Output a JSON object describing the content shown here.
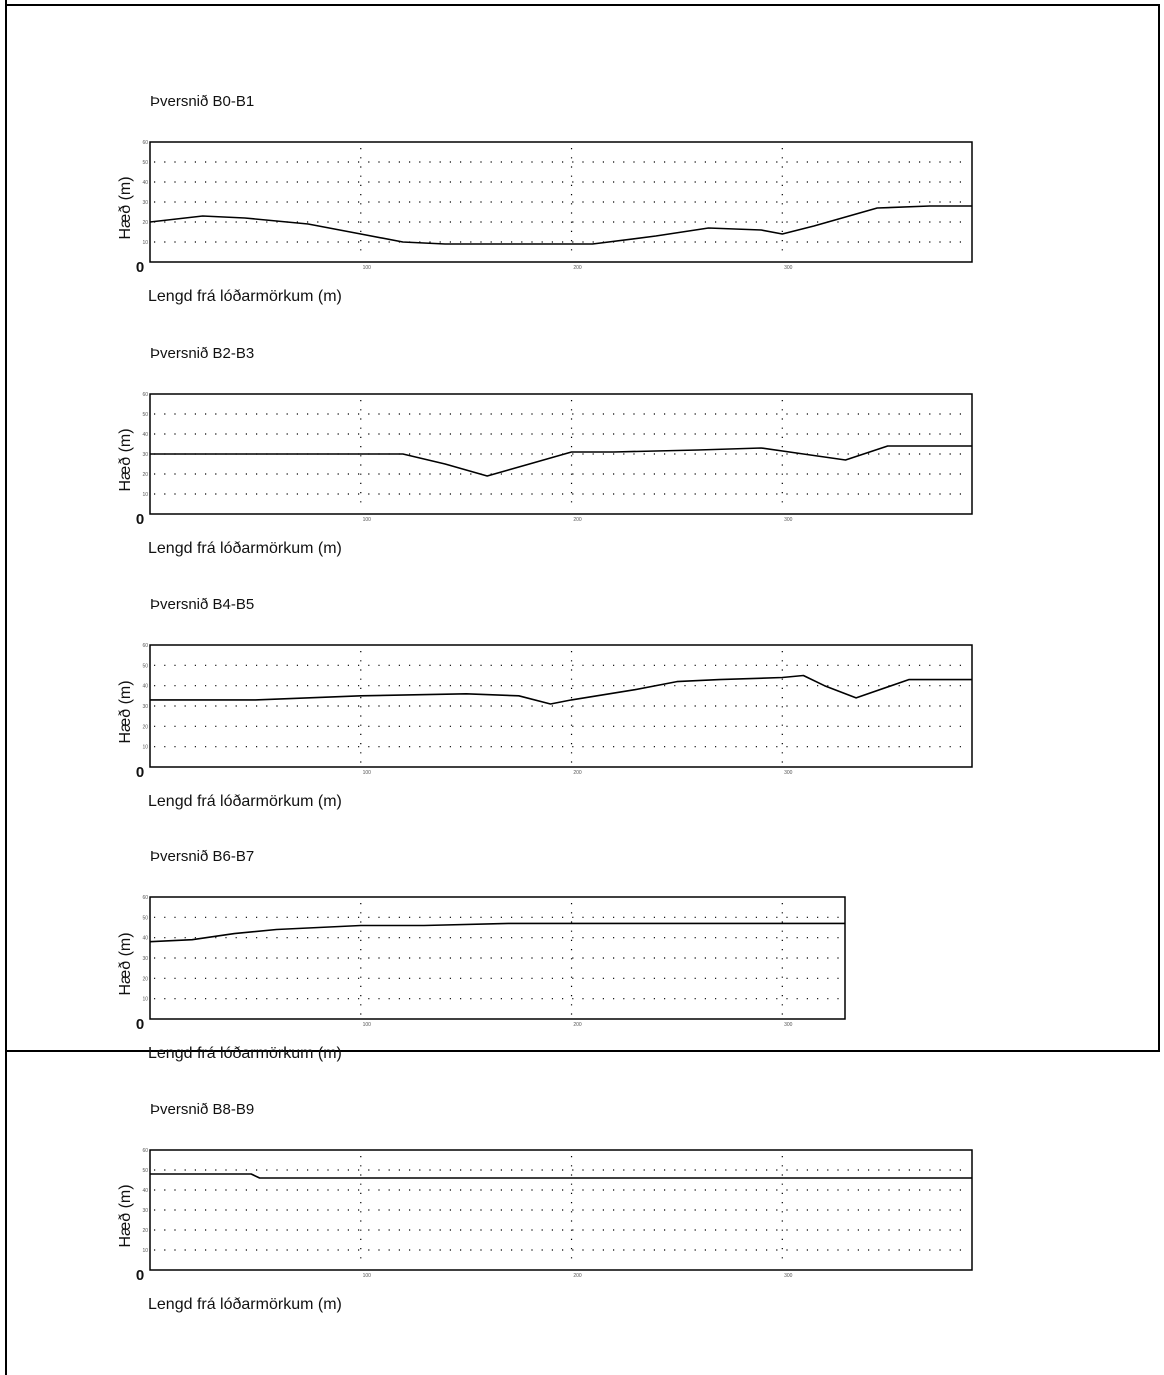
{
  "chart_data": [
    {
      "type": "line",
      "title": "Þversnið B0-B1",
      "xlabel": "Lengd frá lóðarmörkum (m)",
      "ylabel": "Hæð (m)",
      "xlim": [
        0,
        390
      ],
      "ylim": [
        0,
        60
      ],
      "xticks": [
        "0",
        "100",
        "200",
        "300"
      ],
      "yticks": [
        "10",
        "20",
        "30",
        "40",
        "50",
        "60"
      ],
      "grid": "dotted",
      "series": [
        {
          "x": [
            0,
            25,
            45,
            75,
            100,
            120,
            140,
            170,
            210,
            240,
            265,
            290,
            300,
            315,
            345,
            370,
            390
          ],
          "y": [
            20,
            23,
            22,
            19,
            14,
            10,
            9,
            9,
            9,
            13,
            17,
            16,
            14,
            18,
            27,
            28,
            28
          ]
        }
      ]
    },
    {
      "type": "line",
      "title": "Þversnið B2-B3",
      "xlabel": "Lengd frá lóðarmörkum (m)",
      "ylabel": "Hæð (m)",
      "xlim": [
        0,
        390
      ],
      "ylim": [
        0,
        60
      ],
      "xticks": [
        "0",
        "100",
        "200",
        "300"
      ],
      "yticks": [
        "10",
        "20",
        "30",
        "40",
        "50",
        "60"
      ],
      "grid": "dotted",
      "series": [
        {
          "x": [
            0,
            60,
            120,
            140,
            160,
            180,
            200,
            220,
            260,
            290,
            310,
            330,
            350,
            390
          ],
          "y": [
            30,
            30,
            30,
            25,
            19,
            25,
            31,
            31,
            32,
            33,
            30,
            27,
            34,
            34
          ]
        }
      ]
    },
    {
      "type": "line",
      "title": "Þversnið B4-B5",
      "xlabel": "Lengd frá lóðarmörkum (m)",
      "ylabel": "Hæð (m)",
      "xlim": [
        0,
        390
      ],
      "ylim": [
        0,
        60
      ],
      "xticks": [
        "0",
        "100",
        "200",
        "300"
      ],
      "yticks": [
        "10",
        "20",
        "30",
        "40",
        "50",
        "60"
      ],
      "grid": "dotted",
      "series": [
        {
          "x": [
            0,
            50,
            100,
            150,
            175,
            190,
            200,
            230,
            250,
            270,
            300,
            310,
            320,
            335,
            360,
            390
          ],
          "y": [
            33,
            33,
            35,
            36,
            35,
            31,
            33,
            38,
            42,
            43,
            44,
            45,
            40,
            34,
            43,
            43
          ]
        }
      ]
    },
    {
      "type": "line",
      "title": "Þversnið B6-B7",
      "xlabel": "Lengd frá lóðarmörkum (m)",
      "ylabel": "Hæð (m)",
      "xlim": [
        0,
        390
      ],
      "ylim": [
        0,
        60
      ],
      "xticks": [
        "0",
        "100",
        "200",
        "300"
      ],
      "yticks": [
        "10",
        "20",
        "30",
        "40",
        "50",
        "60"
      ],
      "grid": "dotted",
      "series": [
        {
          "x": [
            0,
            20,
            40,
            60,
            80,
            100,
            130,
            170,
            200,
            250,
            300,
            330
          ],
          "y": [
            38,
            39,
            42,
            44,
            45,
            46,
            46,
            47,
            47,
            47,
            47,
            47
          ]
        }
      ]
    },
    {
      "type": "line",
      "title": "Þversnið B8-B9",
      "xlabel": "Lengd frá lóðarmörkum (m)",
      "ylabel": "Hæð (m)",
      "xlim": [
        0,
        390
      ],
      "ylim": [
        0,
        60
      ],
      "xticks": [
        "0",
        "100",
        "200",
        "300"
      ],
      "yticks": [
        "10",
        "20",
        "30",
        "40",
        "50",
        "60"
      ],
      "grid": "dotted",
      "series": [
        {
          "x": [
            0,
            48,
            52,
            100,
            200,
            300,
            390
          ],
          "y": [
            48,
            48,
            46,
            46,
            46,
            46,
            46
          ]
        }
      ]
    }
  ]
}
